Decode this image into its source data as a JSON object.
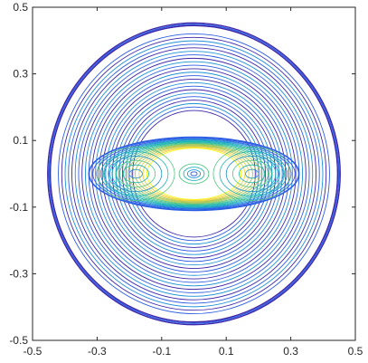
{
  "chart_data": {
    "type": "contour",
    "title": "",
    "xlabel": "",
    "ylabel": "",
    "xlim": [
      -0.5,
      0.5
    ],
    "ylim": [
      -0.5,
      0.5
    ],
    "x_ticks": [
      -0.5,
      -0.3,
      -0.1,
      0.1,
      0.3,
      0.5
    ],
    "y_ticks": [
      -0.5,
      -0.3,
      -0.1,
      0.1,
      0.3,
      0.5
    ],
    "x_tick_labels": [
      "-0.5",
      "-0.3",
      "-0.1",
      "0.1",
      "0.3",
      "0.5"
    ],
    "y_tick_labels": [
      "-0.5",
      "-0.3",
      "-0.1",
      "0.1",
      "0.3",
      "0.5"
    ],
    "grid": false,
    "legend": "none",
    "colormap": [
      "#3e26a8",
      "#2d5ee3",
      "#1f92d6",
      "#1fb4b2",
      "#52c585",
      "#a9c653",
      "#f1cf3a",
      "#f9fb0e"
    ],
    "outer_shock": {
      "shape": "circle",
      "center": [
        0.0,
        0.0
      ],
      "radius": 0.453,
      "count": 3
    },
    "outer_rings": {
      "min_radius": 0.19,
      "max_radius": 0.42,
      "count": 23
    },
    "inner_region": {
      "shape": "ellipse",
      "center": [
        0.0,
        0.0
      ],
      "rx": 0.325,
      "ry": 0.11,
      "count": 16
    },
    "central_eye": {
      "center": [
        0.0,
        0.0
      ],
      "rx": [
        0.01,
        0.02,
        0.032,
        0.046
      ],
      "ry": [
        0.006,
        0.012,
        0.02,
        0.03
      ]
    },
    "side_contours": {
      "centers": [
        [
          -0.18,
          0.0
        ],
        [
          0.18,
          0.0
        ]
      ],
      "rx_max": 0.12,
      "ry_max": 0.08,
      "count": 6
    }
  }
}
